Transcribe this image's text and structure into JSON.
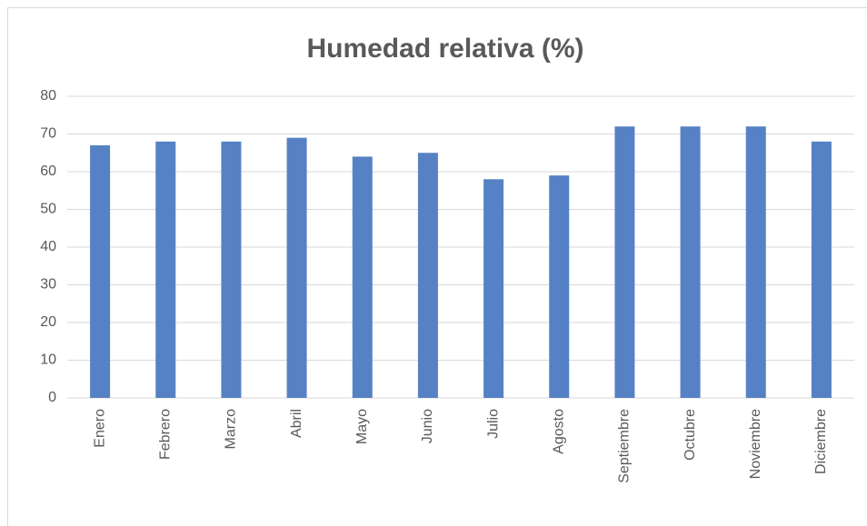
{
  "chart_data": {
    "type": "bar",
    "title": "Humedad relativa (%)",
    "categories": [
      "Enero",
      "Febrero",
      "Marzo",
      "Abril",
      "Mayo",
      "Junio",
      "Julio",
      "Agosto",
      "Septiembre",
      "Octubre",
      "Noviembre",
      "Diciembre"
    ],
    "values": [
      67,
      68,
      68,
      69,
      64,
      65,
      58,
      59,
      72,
      72,
      72,
      68
    ],
    "color": "#5681c4",
    "ylim": [
      0,
      80
    ],
    "yticks": [
      0,
      10,
      20,
      30,
      40,
      50,
      60,
      70,
      80
    ],
    "grid": true
  }
}
